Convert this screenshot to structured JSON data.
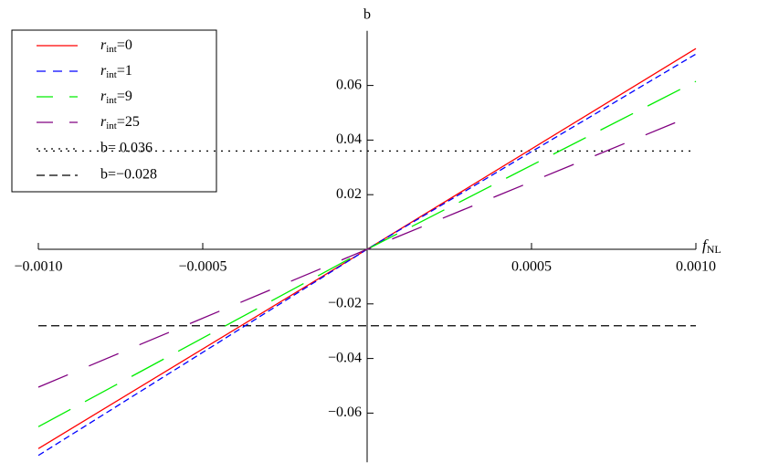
{
  "chart_data": {
    "type": "line",
    "xlabel": [
      "f",
      "NL"
    ],
    "ylabel": "b",
    "x": [
      -0.001,
      0,
      0.001
    ],
    "series": [
      {
        "name": [
          "r",
          "int",
          "=0"
        ],
        "color": "#ff0000",
        "dash": "none",
        "values": [
          -0.073,
          0,
          0.0735
        ]
      },
      {
        "name": [
          "r",
          "int",
          "=1"
        ],
        "color": "#0000ff",
        "dash": "7,4",
        "values": [
          -0.0755,
          0,
          0.0715
        ]
      },
      {
        "name": [
          "r",
          "int",
          "=9"
        ],
        "color": "#00ee00",
        "dash": "40,18",
        "values": [
          -0.065,
          0,
          0.0615
        ]
      },
      {
        "name": [
          "r",
          "int",
          "=25"
        ],
        "color": "#800080",
        "dash": "35,25",
        "values": [
          -0.0505,
          0,
          0.0495
        ]
      }
    ],
    "hlines": [
      {
        "name": "b= 0.036",
        "value": 0.036,
        "color": "#000000",
        "dash": "2,6"
      },
      {
        "name": "b=−0.028",
        "value": -0.028,
        "color": "#000000",
        "dash": "9,5"
      }
    ],
    "xlim": [
      -0.001,
      0.001
    ],
    "ylim": [
      -0.078,
      0.08
    ],
    "xticks": [
      {
        "value": -0.001,
        "label": "−0.0010"
      },
      {
        "value": -0.0005,
        "label": "−0.0005"
      },
      {
        "value": 0.0005,
        "label": "0.0005"
      },
      {
        "value": 0.001,
        "label": "0.0010"
      }
    ],
    "yticks": [
      {
        "value": -0.06,
        "label": "−0.06"
      },
      {
        "value": -0.04,
        "label": "−0.04"
      },
      {
        "value": -0.02,
        "label": "−0.02"
      },
      0.02,
      0.04,
      0.06
    ]
  }
}
